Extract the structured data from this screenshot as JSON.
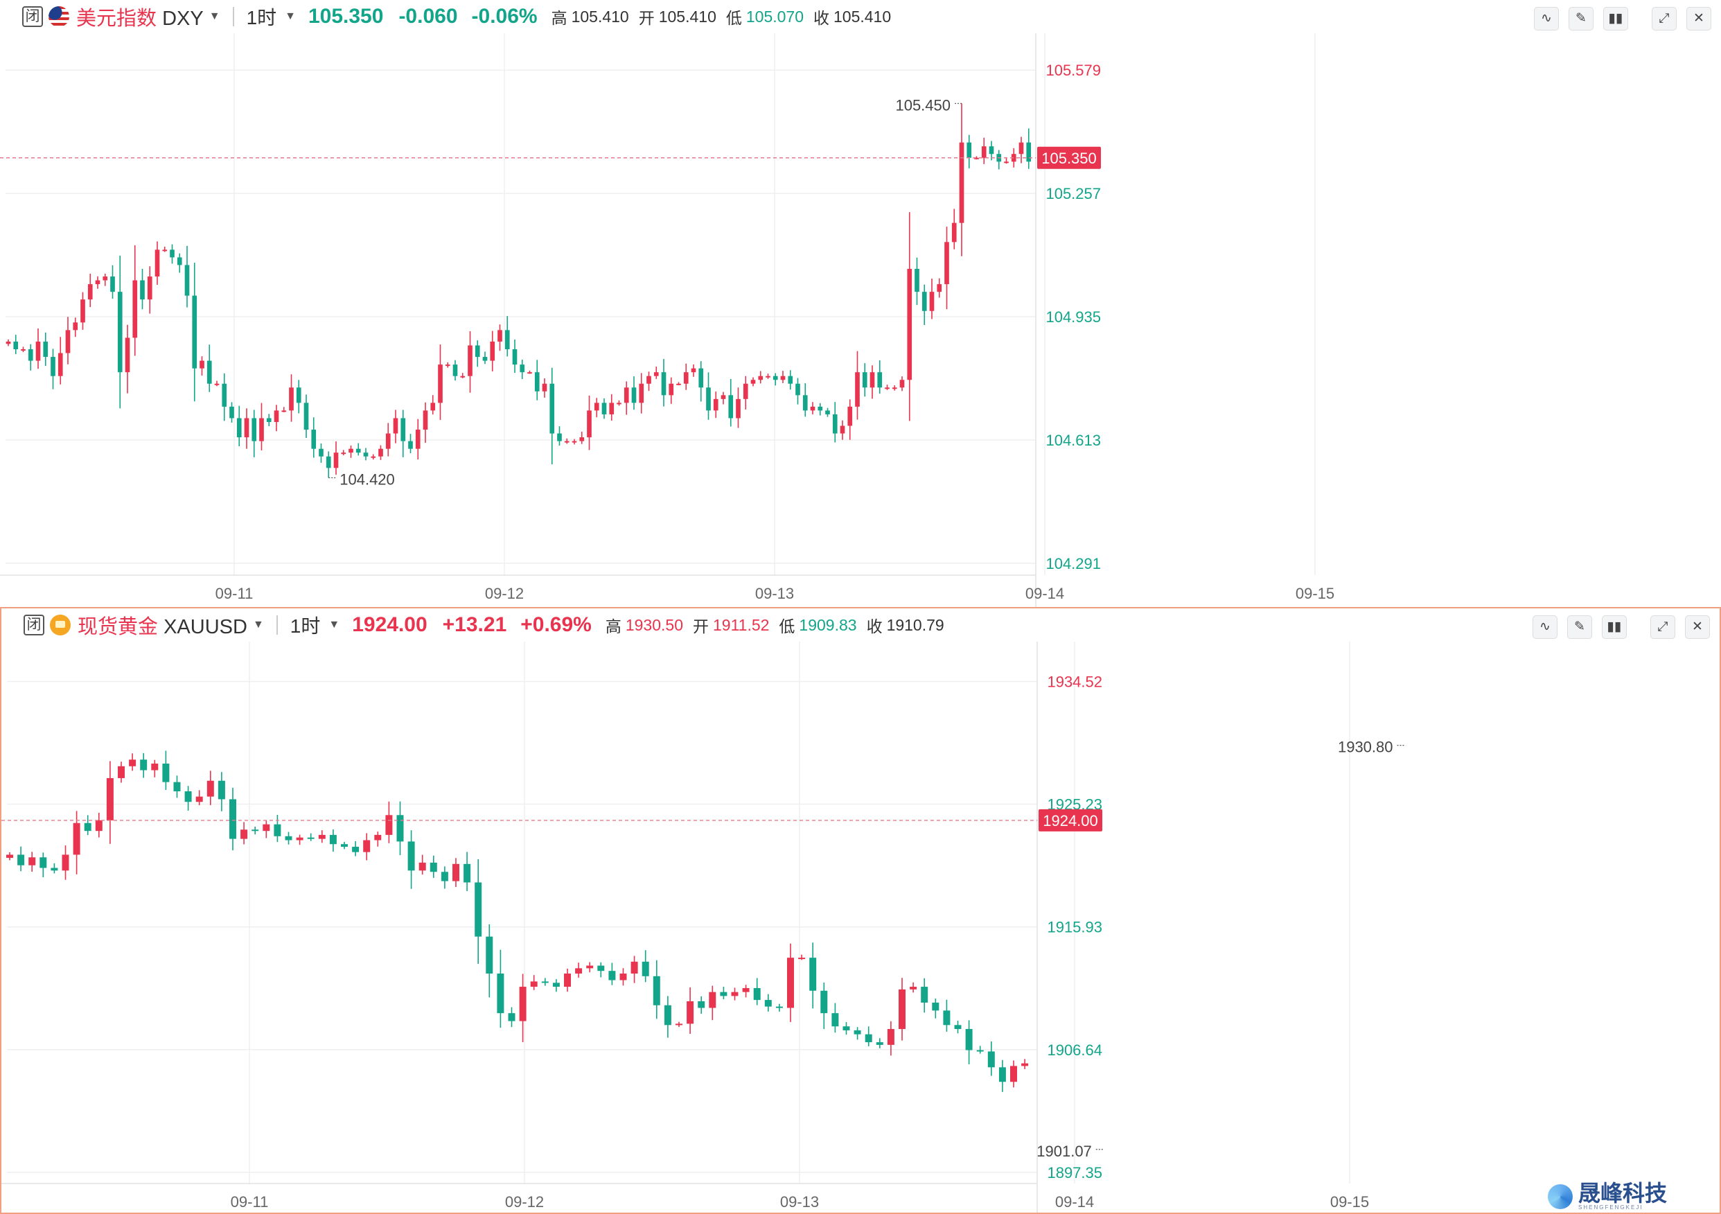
{
  "colors": {
    "up": "#e8344e",
    "down": "#12a58a",
    "last_line": "#e57a8c",
    "grid": "#efefef",
    "axis_text": "#666666"
  },
  "ohlc_labels": {
    "high": "高",
    "open": "开",
    "low": "低",
    "close": "收"
  },
  "toolbar": {
    "closed_label": "闭",
    "buttons": [
      "line-tool-icon",
      "pencil-icon",
      "candles-icon",
      "expand-icon",
      "close-icon"
    ]
  },
  "panels": [
    {
      "name": "美元指数",
      "symbol": "DXY",
      "flag": "us-flag-icon",
      "timeframe": "1时",
      "last": "105.350",
      "change": "-0.060",
      "change_pct": "-0.06%",
      "direction": "down",
      "high": "105.410",
      "open": "105.410",
      "low": "105.070",
      "close": "105.410"
    },
    {
      "name": "现货黄金",
      "symbol": "XAUUSD",
      "flag": "gold-icon",
      "timeframe": "1时",
      "last": "1924.00",
      "change": "+13.21",
      "change_pct": "+0.69%",
      "direction": "up",
      "high": "1930.50",
      "open": "1911.52",
      "low": "1909.83",
      "close": "1910.79"
    }
  ],
  "chart_data": [
    {
      "type": "candlestick",
      "title": "美元指数 DXY",
      "timeframe": "1时",
      "x_ticks": [
        "09-11",
        "09-12",
        "09-13",
        "09-14",
        "09-15"
      ],
      "y_ticks": [
        "105.579",
        "105.257",
        "104.935",
        "104.613",
        "104.291"
      ],
      "ylim": [
        104.26,
        105.65
      ],
      "last_price": "105.350",
      "annotations": [
        {
          "text": "105.450",
          "type": "high"
        },
        {
          "text": "104.420",
          "type": "low"
        }
      ],
      "close": [
        104.87,
        104.85,
        104.85,
        104.82,
        104.87,
        104.83,
        104.78,
        104.84,
        104.9,
        104.92,
        104.98,
        105.02,
        105.03,
        105.04,
        105.0,
        104.79,
        104.88,
        105.03,
        104.98,
        105.04,
        105.11,
        105.11,
        105.09,
        105.07,
        104.99,
        104.8,
        104.82,
        104.76,
        104.76,
        104.7,
        104.67,
        104.62,
        104.67,
        104.61,
        104.67,
        104.66,
        104.69,
        104.69,
        104.75,
        104.71,
        104.64,
        104.59,
        104.57,
        104.54,
        104.58,
        104.58,
        104.59,
        104.58,
        104.57,
        104.57,
        104.59,
        104.63,
        104.67,
        104.61,
        104.59,
        104.64,
        104.69,
        104.71,
        104.81,
        104.81,
        104.78,
        104.78,
        104.86,
        104.83,
        104.82,
        104.87,
        104.9,
        104.85,
        104.81,
        104.79,
        104.79,
        104.74,
        104.76,
        104.63,
        104.61,
        104.61,
        104.61,
        104.62,
        104.69,
        104.71,
        104.68,
        104.71,
        104.71,
        104.75,
        104.71,
        104.76,
        104.78,
        104.79,
        104.73,
        104.76,
        104.76,
        104.79,
        104.8,
        104.75,
        104.69,
        104.72,
        104.73,
        104.67,
        104.72,
        104.76,
        104.77,
        104.78,
        104.78,
        104.77,
        104.78,
        104.76,
        104.73,
        104.69,
        104.7,
        104.69,
        104.68,
        104.63,
        104.65,
        104.7,
        104.79,
        104.75,
        104.79,
        104.75,
        104.75,
        104.75,
        104.77,
        105.06,
        105.0,
        104.95,
        105.0,
        105.02,
        105.13,
        105.18,
        105.39,
        105.35,
        105.35,
        105.38,
        105.36,
        105.34,
        105.34,
        105.36,
        105.39,
        105.34,
        105.33,
        105.29,
        105.27,
        105.25,
        105.23,
        105.23,
        105.25,
        105.24,
        105.22,
        105.25,
        105.29,
        105.31,
        105.39,
        105.34,
        105.27,
        105.22,
        105.2,
        105.22,
        105.26,
        105.32,
        105.34,
        105.35
      ],
      "note": "hourly OHLC; open of each bar equals prior close"
    },
    {
      "type": "candlestick",
      "title": "现货黄金 XAUUSD",
      "timeframe": "1时",
      "x_ticks": [
        "09-11",
        "09-12",
        "09-13",
        "09-14",
        "09-15"
      ],
      "y_ticks": [
        "1934.52",
        "1925.23",
        "1915.93",
        "1906.64",
        "1897.35"
      ],
      "ylim": [
        1896.5,
        1936.8
      ],
      "last_price": "1924.00",
      "annotations": [
        {
          "text": "1930.80",
          "type": "high"
        },
        {
          "text": "1901.07",
          "type": "low"
        }
      ],
      "close": [
        1921.4,
        1920.6,
        1921.2,
        1920.4,
        1920.2,
        1921.4,
        1923.8,
        1923.2,
        1924.0,
        1927.2,
        1928.1,
        1928.6,
        1927.8,
        1928.3,
        1926.9,
        1926.2,
        1925.4,
        1925.8,
        1927.0,
        1925.6,
        1922.6,
        1923.3,
        1923.2,
        1923.7,
        1922.8,
        1922.5,
        1922.7,
        1922.6,
        1922.9,
        1922.2,
        1922.0,
        1921.6,
        1922.5,
        1922.9,
        1924.4,
        1922.4,
        1920.2,
        1920.8,
        1920.1,
        1919.4,
        1920.7,
        1919.3,
        1915.2,
        1912.4,
        1909.4,
        1908.8,
        1911.4,
        1911.8,
        1911.7,
        1911.4,
        1912.4,
        1912.8,
        1913.0,
        1912.6,
        1911.9,
        1912.4,
        1913.3,
        1912.2,
        1910.0,
        1908.5,
        1908.6,
        1910.3,
        1909.8,
        1911.0,
        1910.7,
        1911.0,
        1911.3,
        1910.4,
        1909.9,
        1909.8,
        1913.6,
        1913.6,
        1911.1,
        1909.4,
        1908.4,
        1908.1,
        1907.8,
        1907.2,
        1907.0,
        1908.2,
        1911.2,
        1911.4,
        1910.2,
        1909.6,
        1908.5,
        1908.2,
        1906.6,
        1906.5,
        1905.3,
        1904.2,
        1905.4,
        1905.6,
        1907.9,
        1907.6,
        1908.5,
        1905.8,
        1903.2,
        1901.3,
        1906.6,
        1908.2,
        1909.0,
        1909.8,
        1909.6,
        1909.4,
        1909.4,
        1910.1,
        1910.3,
        1910.8,
        1910.8,
        1909.9,
        1909.4,
        1917.0,
        1916.6,
        1916.4,
        1916.3,
        1917.4,
        1917.6,
        1919.2,
        1919.2,
        1918.8,
        1918.4,
        1919.4,
        1918.6,
        1919.2,
        1925.8,
        1928.4,
        1925.6,
        1924.4,
        1923.8,
        1924.0
      ],
      "note": "hourly OHLC; open of each bar equals prior close"
    }
  ]
}
